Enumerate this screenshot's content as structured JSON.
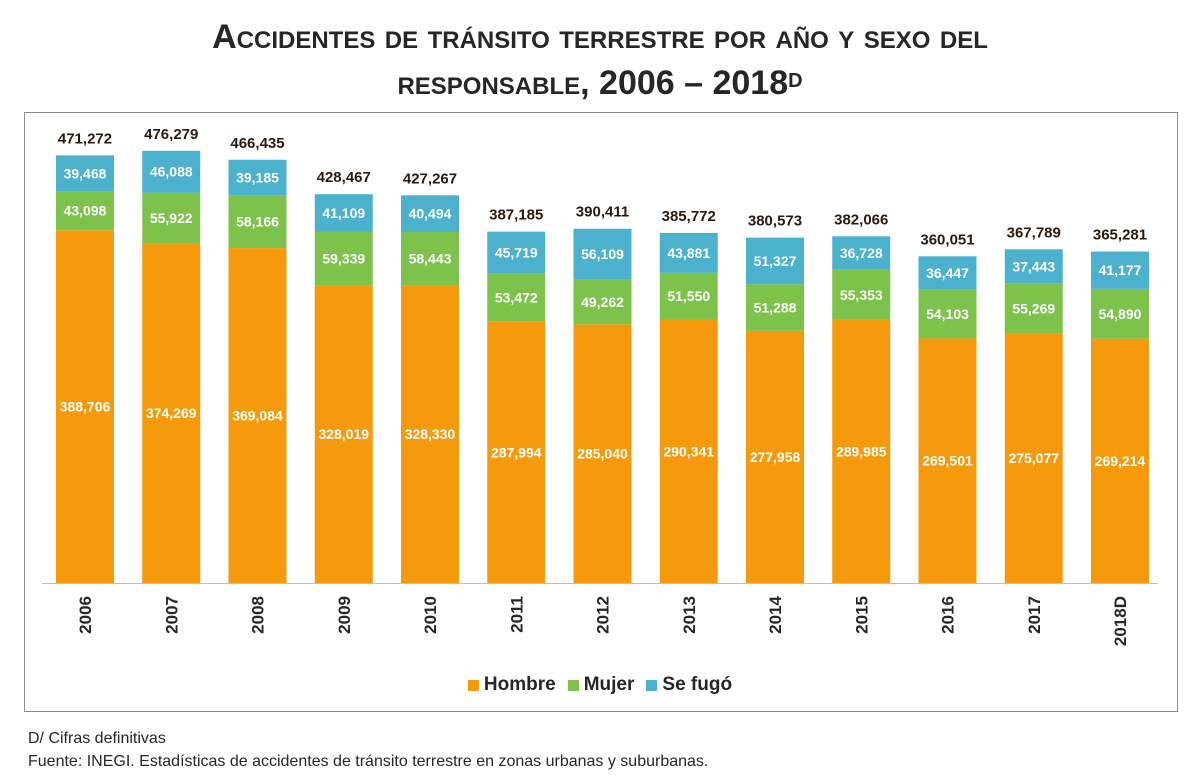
{
  "title": {
    "line1": "Accidentes de tránsito terrestre por año y sexo del",
    "line2_sc": "responsable",
    "line2_rest": ", 2006 – 2018",
    "superscript": "D"
  },
  "chart_data": {
    "type": "bar",
    "stacked": true,
    "categories": [
      "2006",
      "2007",
      "2008",
      "2009",
      "2010",
      "2011",
      "2012",
      "2013",
      "2014",
      "2015",
      "2016",
      "2017",
      "2018D"
    ],
    "series": [
      {
        "name": "Hombre",
        "color": "#f59a0c",
        "values": [
          388706,
          374269,
          369084,
          328019,
          328330,
          287994,
          285040,
          290341,
          277958,
          289985,
          269501,
          275077,
          269214
        ]
      },
      {
        "name": "Mujer",
        "color": "#7dc24b",
        "values": [
          43098,
          55922,
          58166,
          59339,
          58443,
          53472,
          49262,
          51550,
          51288,
          55353,
          54103,
          55269,
          54890
        ]
      },
      {
        "name": "Se fugó",
        "color": "#4bb1cd",
        "values": [
          39468,
          46088,
          39185,
          41109,
          40494,
          45719,
          56109,
          43881,
          51327,
          36728,
          36447,
          37443,
          41177
        ]
      }
    ],
    "totals": [
      471272,
      476279,
      466435,
      428467,
      427267,
      387185,
      390411,
      385772,
      380573,
      382066,
      360051,
      367789,
      365281
    ],
    "ylim": [
      0,
      540000
    ],
    "grid": false,
    "legend_position": "bottom"
  },
  "footnotes": {
    "note": "D/ Cifras definitivas",
    "source": "Fuente: INEGI. Estadísticas de accidentes de tránsito terrestre en zonas urbanas y suburbanas."
  }
}
